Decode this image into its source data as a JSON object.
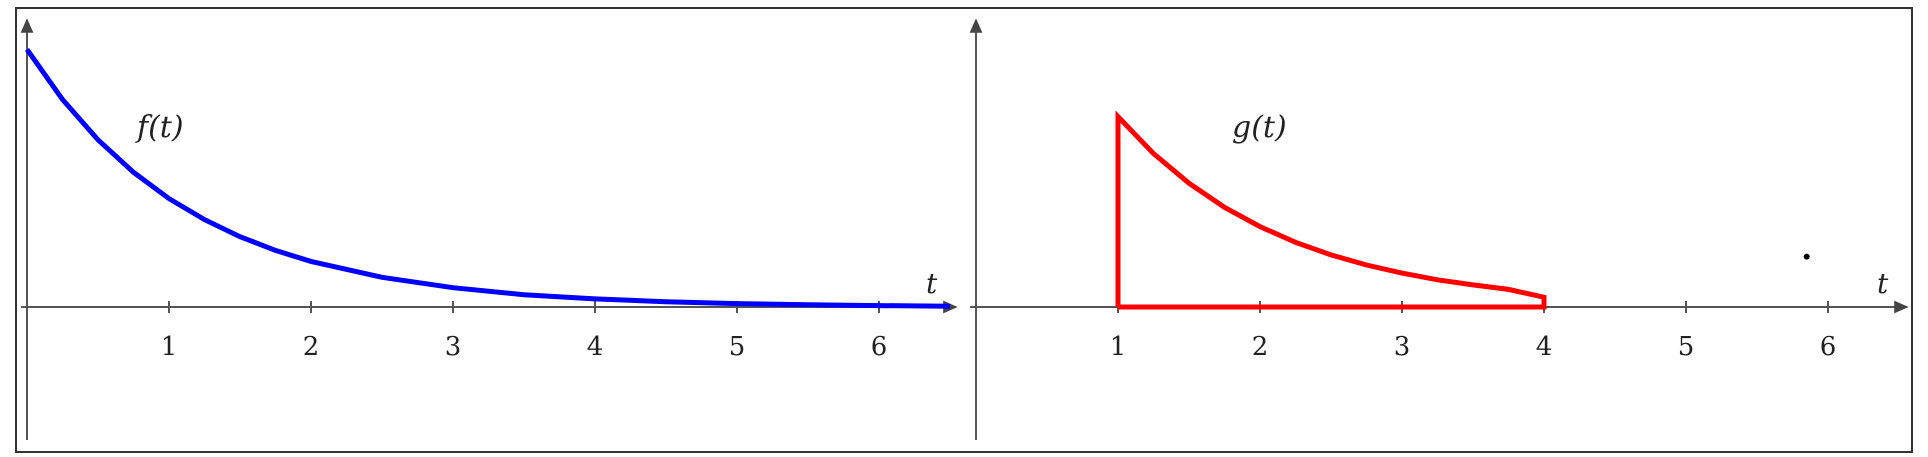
{
  "chart_data": [
    {
      "type": "line",
      "title": "",
      "function_label": "f(t)",
      "xlabel": "t",
      "ylabel": "",
      "xlim": [
        0,
        6.5
      ],
      "ylim": [
        -0.9,
        1.0
      ],
      "x_ticks": [
        "1",
        "2",
        "3",
        "4",
        "5",
        "6"
      ],
      "series": [
        {
          "color": "#0000ff",
          "x": [
            0,
            0.25,
            0.5,
            0.75,
            1.0,
            1.25,
            1.5,
            1.75,
            2.0,
            2.5,
            3.0,
            3.5,
            4.0,
            4.5,
            5.0,
            5.5,
            6.0,
            6.5
          ],
          "y": [
            0.92,
            0.741,
            0.597,
            0.481,
            0.387,
            0.312,
            0.251,
            0.202,
            0.163,
            0.106,
            0.069,
            0.044,
            0.029,
            0.019,
            0.012,
            0.008,
            0.005,
            0.003
          ]
        }
      ]
    },
    {
      "type": "line",
      "title": "",
      "function_label": "g(t)",
      "xlabel": "t",
      "ylabel": "",
      "xlim": [
        0,
        6.5
      ],
      "ylim": [
        -0.9,
        1.0
      ],
      "x_ticks": [
        "1",
        "2",
        "3",
        "4",
        "5",
        "6"
      ],
      "series": [
        {
          "color": "#ff0000",
          "x": [
            1.0,
            1.0,
            1.25,
            1.5,
            1.75,
            2.0,
            2.25,
            2.5,
            2.75,
            3.0,
            3.25,
            3.5,
            3.75,
            4.0,
            4.0,
            1.0
          ],
          "y": [
            0.0,
            0.68,
            0.548,
            0.442,
            0.356,
            0.287,
            0.231,
            0.186,
            0.15,
            0.121,
            0.097,
            0.079,
            0.063,
            0.035,
            0.0,
            0.0
          ]
        }
      ],
      "annotations": [
        {
          "type": "point",
          "x": 5.85,
          "y": 0.18,
          "color": "#000000"
        }
      ]
    }
  ]
}
